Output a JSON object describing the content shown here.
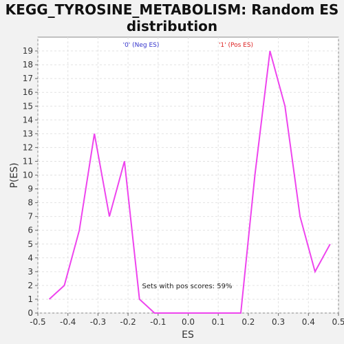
{
  "chart_data": {
    "type": "line",
    "title_lines": [
      "KEGG_TYROSINE_METABOLISM: Random ES",
      "distribution"
    ],
    "xlabel": "ES",
    "ylabel": "P(ES)",
    "xlim": [
      -0.5,
      0.5
    ],
    "ylim": [
      0,
      20
    ],
    "x_ticks": [
      "-0.5",
      "-0.4",
      "-0.3",
      "-0.2",
      "-0.1",
      "0.0",
      "0.1",
      "0.2",
      "0.3",
      "0.4",
      "0.5"
    ],
    "y_ticks": [
      "0",
      "1",
      "2",
      "3",
      "4",
      "5",
      "6",
      "7",
      "8",
      "9",
      "10",
      "11",
      "12",
      "13",
      "14",
      "15",
      "16",
      "17",
      "18",
      "19"
    ],
    "grid": true,
    "legend": [
      {
        "label": "'0' (Neg ES)",
        "color": "#3333cc"
      },
      {
        "label": "'1' (Pos ES)",
        "color": "#dd2222"
      }
    ],
    "annotation": "Sets with pos scores: 59%",
    "series": [
      {
        "color": "#ee44ee",
        "x": [
          -0.462,
          -0.412,
          -0.362,
          -0.312,
          -0.262,
          -0.212,
          -0.162,
          -0.112,
          0.175,
          0.222,
          0.272,
          0.322,
          0.372,
          0.422,
          0.472
        ],
        "y": [
          1,
          2,
          6,
          13,
          7,
          11,
          1,
          0,
          0,
          10,
          19,
          15,
          7,
          3,
          5
        ]
      }
    ]
  }
}
